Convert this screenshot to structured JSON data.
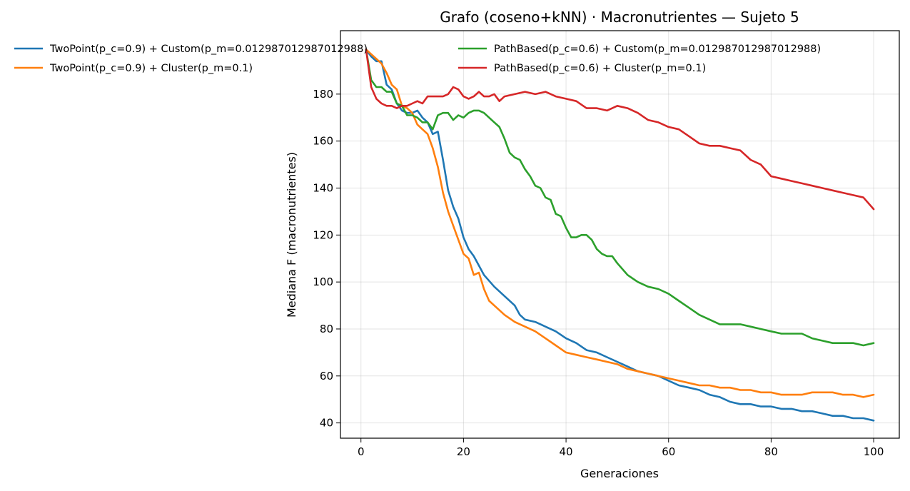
{
  "chart_data": {
    "type": "line",
    "title": "Grafo (coseno+kNN) · Macronutrientes — Sujeto 5",
    "xlabel": "Generaciones",
    "ylabel": "Mediana F (macronutrientes)",
    "xlim": [
      -4,
      105
    ],
    "ylim": [
      33.5,
      207
    ],
    "xticks": [
      0,
      20,
      40,
      60,
      80,
      100
    ],
    "yticks": [
      40,
      60,
      80,
      100,
      120,
      140,
      160,
      180
    ],
    "grid": true,
    "legend_placement": "top, two columns",
    "series": [
      {
        "name": "TwoPoint(p_c=0.9) + Custom(p_m=0.012987012987012988)",
        "color": "#1f77b4",
        "x": [
          1,
          2,
          3,
          4,
          5,
          6,
          7,
          8,
          9,
          10,
          11,
          12,
          13,
          14,
          15,
          16,
          17,
          18,
          19,
          20,
          21,
          22,
          23,
          24,
          26,
          28,
          30,
          31,
          32,
          34,
          36,
          38,
          40,
          42,
          44,
          46,
          48,
          50,
          52,
          54,
          56,
          58,
          60,
          62,
          64,
          66,
          68,
          70,
          72,
          74,
          76,
          78,
          80,
          82,
          84,
          86,
          88,
          90,
          92,
          94,
          96,
          98,
          100
        ],
        "values": [
          199,
          196,
          194,
          194,
          184,
          182,
          176,
          173,
          172,
          172,
          173,
          170,
          168,
          163,
          164,
          152,
          139,
          132,
          127,
          119,
          114,
          111,
          107,
          103,
          98,
          94,
          90,
          86,
          84,
          83,
          81,
          79,
          76,
          74,
          71,
          70,
          68,
          66,
          64,
          62,
          61,
          60,
          58,
          56,
          55,
          54,
          52,
          51,
          49,
          48,
          48,
          47,
          47,
          46,
          46,
          45,
          45,
          44,
          43,
          43,
          42,
          42,
          41
        ]
      },
      {
        "name": "TwoPoint(p_c=0.9) + Cluster(p_m=0.1)",
        "color": "#ff7f0e",
        "x": [
          1,
          2,
          3,
          4,
          5,
          6,
          7,
          8,
          9,
          10,
          11,
          12,
          13,
          14,
          15,
          16,
          17,
          18,
          19,
          20,
          21,
          22,
          23,
          24,
          25,
          26,
          28,
          30,
          32,
          34,
          36,
          38,
          40,
          42,
          44,
          46,
          48,
          50,
          52,
          54,
          56,
          58,
          60,
          62,
          64,
          66,
          68,
          70,
          72,
          74,
          76,
          78,
          80,
          82,
          84,
          86,
          88,
          90,
          92,
          94,
          96,
          98,
          100
        ],
        "values": [
          199,
          197,
          195,
          193,
          189,
          184,
          182,
          175,
          174,
          172,
          167,
          165,
          163,
          157,
          149,
          138,
          130,
          124,
          118,
          112,
          110,
          103,
          104,
          97,
          92,
          90,
          86,
          83,
          81,
          79,
          76,
          73,
          70,
          69,
          68,
          67,
          66,
          65,
          63,
          62,
          61,
          60,
          59,
          58,
          57,
          56,
          56,
          55,
          55,
          54,
          54,
          53,
          53,
          52,
          52,
          52,
          53,
          53,
          53,
          52,
          52,
          51,
          52
        ]
      },
      {
        "name": "PathBased(p_c=0.6) + Custom(p_m=0.012987012987012988)",
        "color": "#2ca02c",
        "x": [
          1,
          2,
          3,
          4,
          5,
          6,
          7,
          8,
          9,
          10,
          11,
          12,
          13,
          14,
          15,
          16,
          17,
          18,
          19,
          20,
          21,
          22,
          23,
          24,
          25,
          26,
          27,
          28,
          29,
          30,
          31,
          32,
          33,
          34,
          35,
          36,
          37,
          38,
          39,
          40,
          41,
          42,
          43,
          44,
          45,
          46,
          47,
          48,
          49,
          50,
          52,
          54,
          56,
          58,
          60,
          62,
          64,
          66,
          68,
          70,
          72,
          74,
          76,
          78,
          80,
          82,
          84,
          86,
          88,
          90,
          92,
          94,
          96,
          98,
          100
        ],
        "values": [
          199,
          186,
          183,
          183,
          181,
          181,
          176,
          175,
          171,
          171,
          170,
          168,
          168,
          165,
          171,
          172,
          172,
          169,
          171,
          170,
          172,
          173,
          173,
          172,
          170,
          168,
          166,
          161,
          155,
          153,
          152,
          148,
          145,
          141,
          140,
          136,
          135,
          129,
          128,
          123,
          119,
          119,
          120,
          120,
          118,
          114,
          112,
          111,
          111,
          108,
          103,
          100,
          98,
          97,
          95,
          92,
          89,
          86,
          84,
          82,
          82,
          82,
          81,
          80,
          79,
          78,
          78,
          78,
          76,
          75,
          74,
          74,
          74,
          73,
          74
        ]
      },
      {
        "name": "PathBased(p_c=0.6) + Cluster(p_m=0.1)",
        "color": "#d62728",
        "x": [
          1,
          2,
          3,
          4,
          5,
          6,
          7,
          8,
          9,
          10,
          11,
          12,
          13,
          14,
          15,
          16,
          17,
          18,
          19,
          20,
          21,
          22,
          23,
          24,
          25,
          26,
          27,
          28,
          30,
          32,
          34,
          36,
          38,
          40,
          42,
          44,
          46,
          48,
          50,
          52,
          54,
          56,
          58,
          60,
          62,
          64,
          66,
          68,
          70,
          72,
          74,
          76,
          78,
          80,
          82,
          84,
          86,
          88,
          90,
          92,
          94,
          96,
          98,
          100
        ],
        "values": [
          199,
          183,
          178,
          176,
          175,
          175,
          174,
          175,
          175,
          176,
          177,
          176,
          179,
          179,
          179,
          179,
          180,
          183,
          182,
          179,
          178,
          179,
          181,
          179,
          179,
          180,
          177,
          179,
          180,
          181,
          180,
          181,
          179,
          178,
          177,
          174,
          174,
          173,
          175,
          174,
          172,
          169,
          168,
          166,
          165,
          162,
          159,
          158,
          158,
          157,
          156,
          152,
          150,
          145,
          144,
          143,
          142,
          141,
          140,
          139,
          138,
          137,
          136,
          131
        ]
      }
    ]
  }
}
